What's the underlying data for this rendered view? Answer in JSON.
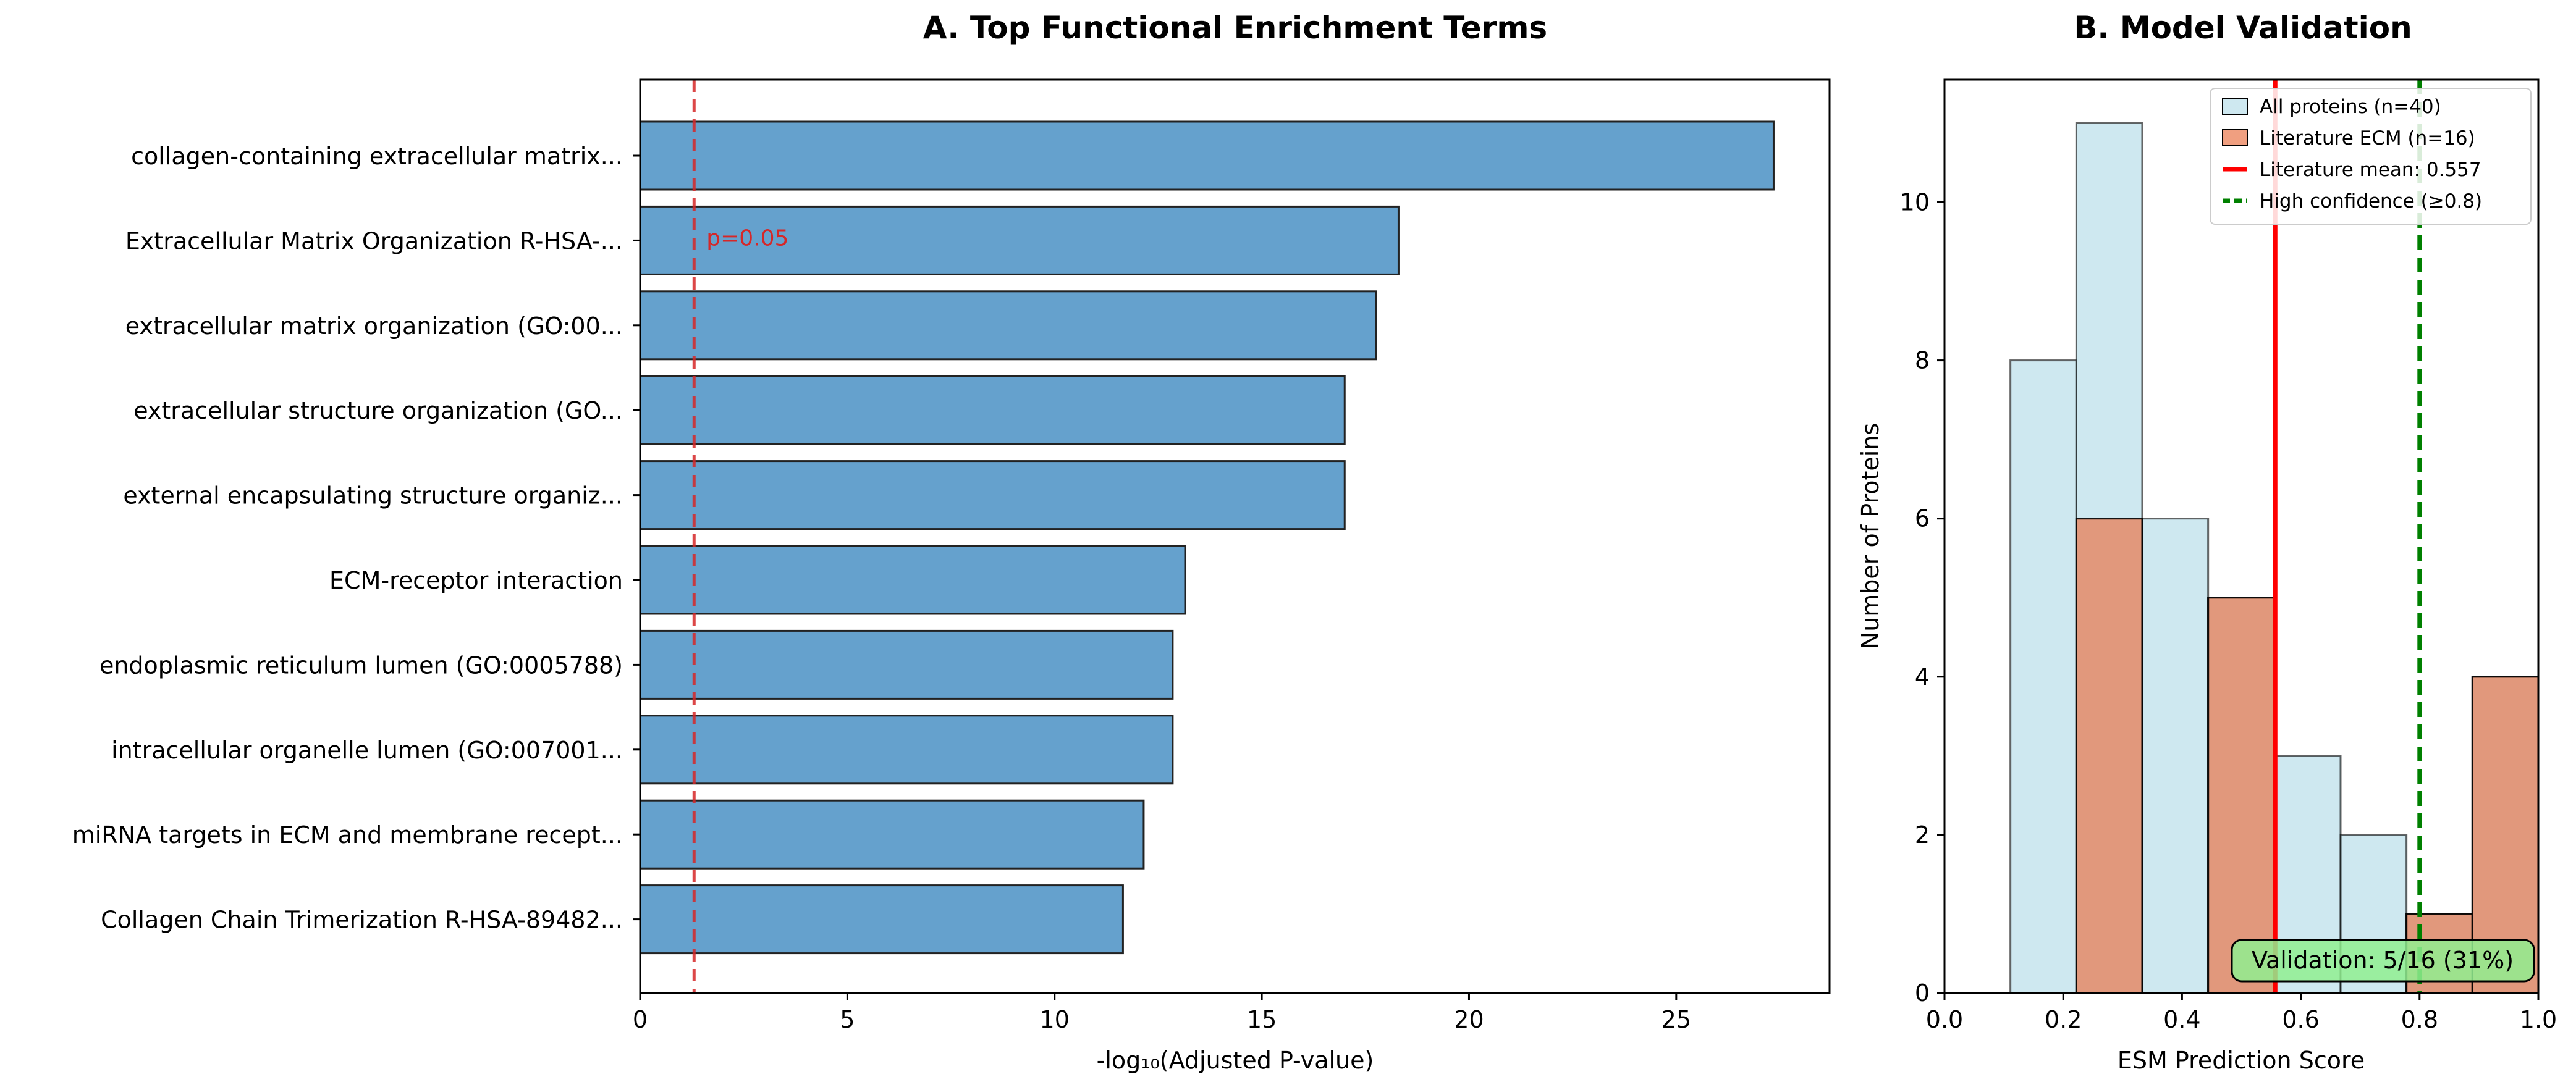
{
  "chart_data": [
    {
      "type": "bar",
      "orientation": "horizontal",
      "title": "A. Top Functional Enrichment Terms",
      "xlabel": "-log₁₀(Adjusted P-value)",
      "ylabel": "",
      "xlim": [
        0,
        28.7
      ],
      "xticks": [
        0,
        5,
        10,
        15,
        20,
        25
      ],
      "categories": [
        "collagen-containing extracellular matrix...",
        "Extracellular Matrix Organization R-HSA-...",
        "extracellular matrix organization (GO:00...",
        "extracellular structure organization (GO...",
        "external encapsulating structure organiz...",
        "ECM-receptor interaction",
        "endoplasmic reticulum lumen (GO:0005788)",
        "intracellular organelle lumen (GO:007001...",
        "miRNA targets in ECM and membrane recept...",
        "Collagen Chain Trimerization R-HSA-89482..."
      ],
      "values": [
        27.35,
        18.3,
        17.75,
        17.0,
        17.0,
        13.15,
        12.85,
        12.85,
        12.15,
        11.65
      ],
      "bar_color": "#4a90c4",
      "threshold": {
        "value": 1.301,
        "label": "p=0.05",
        "color": "#d62728"
      },
      "grid": false
    },
    {
      "type": "histogram",
      "title": "B. Model Validation",
      "xlabel": "ESM Prediction Score",
      "ylabel": "Number of Proteins",
      "xlim": [
        0.0,
        1.0
      ],
      "ylim": [
        0,
        11.55
      ],
      "xticks": [
        "0.0",
        "0.2",
        "0.4",
        "0.6",
        "0.8",
        "1.0"
      ],
      "yticks": [
        0,
        2,
        4,
        6,
        8,
        10
      ],
      "series": [
        {
          "name": "All proteins (n=40)",
          "color": "#add8e6",
          "bins": [
            {
              "x0": 0.111,
              "x1": 0.222,
              "count": 8
            },
            {
              "x0": 0.222,
              "x1": 0.333,
              "count": 11
            },
            {
              "x0": 0.333,
              "x1": 0.444,
              "count": 6
            },
            {
              "x0": 0.444,
              "x1": 0.556,
              "count": 5
            },
            {
              "x0": 0.556,
              "x1": 0.667,
              "count": 3
            },
            {
              "x0": 0.667,
              "x1": 0.778,
              "count": 2
            },
            {
              "x0": 0.778,
              "x1": 0.889,
              "count": 1
            },
            {
              "x0": 0.889,
              "x1": 1.0,
              "count": 4
            }
          ]
        },
        {
          "name": "Literature ECM (n=16)",
          "color": "#e9764a",
          "bins": [
            {
              "x0": 0.222,
              "x1": 0.333,
              "count": 6
            },
            {
              "x0": 0.444,
              "x1": 0.556,
              "count": 5
            },
            {
              "x0": 0.778,
              "x1": 0.889,
              "count": 1
            },
            {
              "x0": 0.889,
              "x1": 1.0,
              "count": 4
            }
          ]
        }
      ],
      "reference_lines": [
        {
          "name": "Literature mean: 0.557",
          "value": 0.557,
          "color": "#ff0000",
          "style": "solid"
        },
        {
          "name": "High confidence (≥0.8)",
          "value": 0.8,
          "color": "#008000",
          "style": "dashed"
        }
      ],
      "legend_placement": "top-right",
      "annotation": {
        "text": "Validation: 5/16 (31%)",
        "color": "#90ee90"
      },
      "grid": false
    }
  ]
}
